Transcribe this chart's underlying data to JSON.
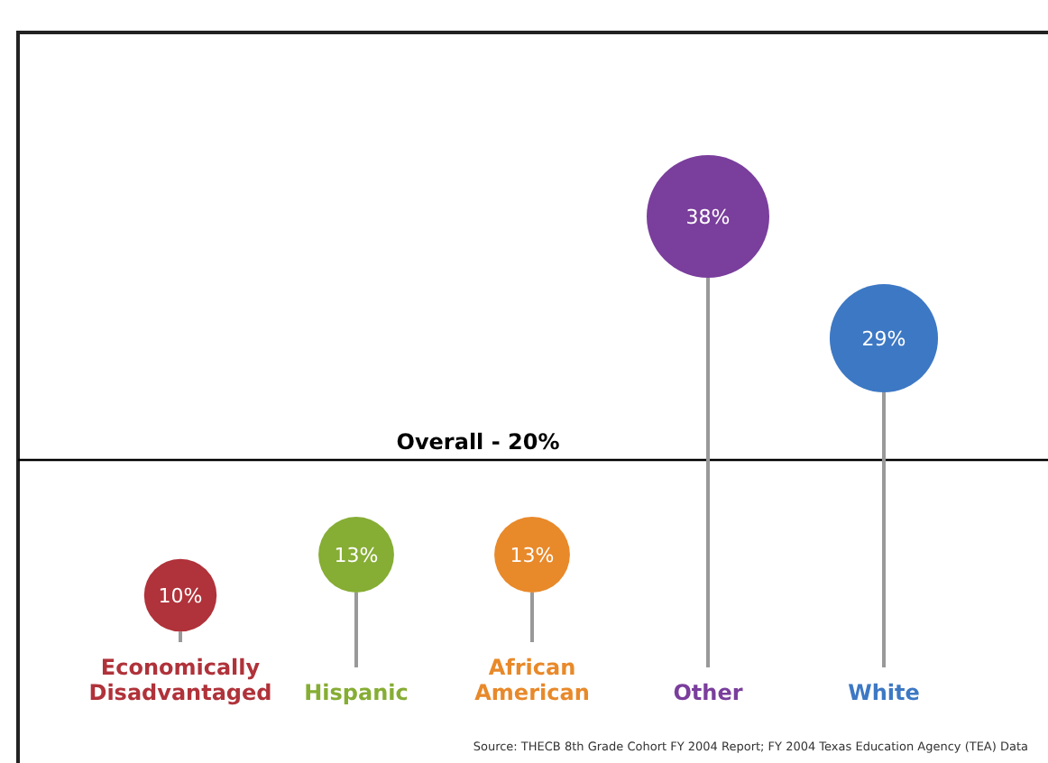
{
  "chart_data": {
    "type": "bubble",
    "categories": [
      "Economically Disadvantaged",
      "Hispanic",
      "African American",
      "Other",
      "White"
    ],
    "values": [
      10,
      13,
      13,
      38,
      29
    ],
    "sizes": [
      0.35,
      0.38,
      0.38,
      1,
      0.78
    ],
    "colors": [
      "#b0323a",
      "#86ad34",
      "#e8892a",
      "#7a3e9c",
      "#3d78c4"
    ],
    "value_labels": [
      "10%",
      "13%",
      "13%",
      "38%",
      "29%"
    ],
    "tick_labels": "x",
    "ref_lines": [
      {
        "axis": "y",
        "value": 20,
        "label": "Overall - 20%",
        "color": "#000000"
      }
    ],
    "annotations": [
      "Source: THECB 8th Grade Cohort FY 2004 Report; FY 2004 Texas Education Agency (TEA) Data"
    ]
  }
}
